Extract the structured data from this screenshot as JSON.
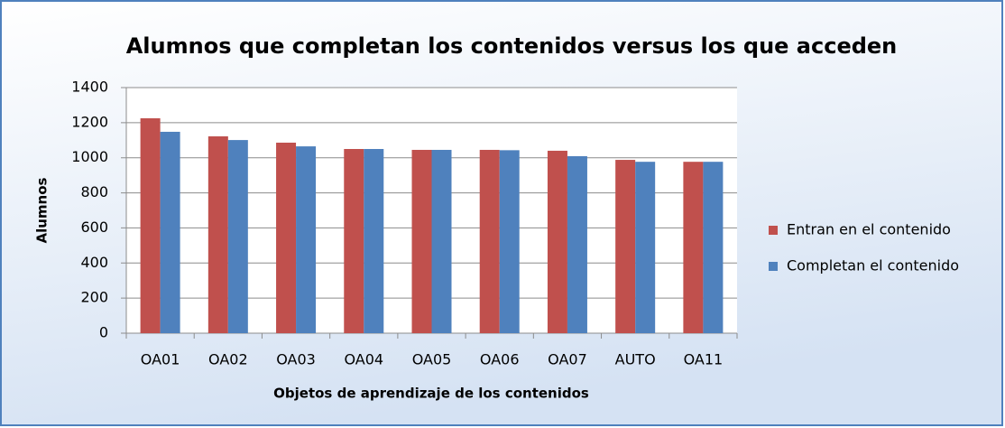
{
  "chart_data": {
    "type": "bar",
    "title": "Alumnos que completan los contenidos versus los que acceden",
    "x_label": "Objetos de aprendizaje de los contenidos",
    "y_label": "Alumnos",
    "categories": [
      "OA01",
      "OA02",
      "OA03",
      "OA04",
      "OA05",
      "OA06",
      "OA07",
      "AUTO",
      "OA11"
    ],
    "series": [
      {
        "name": "Entran en el contenido",
        "color": "#c0504d",
        "values": [
          1225,
          1122,
          1086,
          1050,
          1045,
          1045,
          1040,
          988,
          977
        ]
      },
      {
        "name": "Completan el contenido",
        "color": "#4f81bd",
        "values": [
          1148,
          1101,
          1065,
          1050,
          1045,
          1043,
          1009,
          977,
          977
        ]
      }
    ],
    "ylim": [
      0,
      1400
    ],
    "yticks": [
      0,
      200,
      400,
      600,
      800,
      1000,
      1200,
      1400
    ],
    "grid": true,
    "legend": "right"
  }
}
